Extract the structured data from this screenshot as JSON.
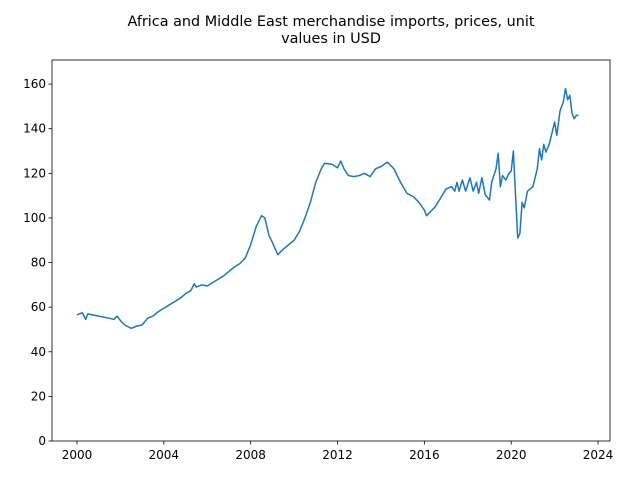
{
  "chart_data": {
    "type": "line",
    "title": [
      "Africa and Middle East merchandise imports, prices, unit",
      "values in USD"
    ],
    "x": [
      2000.0,
      2000.25,
      2000.4,
      2000.5,
      2001.0,
      2001.5,
      2001.7,
      2001.85,
      2002.0,
      2002.2,
      2002.5,
      2002.75,
      2003.0,
      2003.25,
      2003.5,
      2003.75,
      2004.0,
      2004.25,
      2004.5,
      2004.75,
      2005.0,
      2005.25,
      2005.4,
      2005.5,
      2005.75,
      2006.0,
      2006.25,
      2006.5,
      2006.75,
      2007.0,
      2007.25,
      2007.5,
      2007.75,
      2008.0,
      2008.25,
      2008.5,
      2008.65,
      2008.85,
      2009.0,
      2009.25,
      2009.5,
      2009.75,
      2010.0,
      2010.25,
      2010.5,
      2010.75,
      2011.0,
      2011.25,
      2011.4,
      2011.75,
      2012.0,
      2012.15,
      2012.3,
      2012.5,
      2012.75,
      2013.0,
      2013.25,
      2013.5,
      2013.75,
      2014.0,
      2014.3,
      2014.6,
      2014.9,
      2015.2,
      2015.5,
      2015.75,
      2016.0,
      2016.1,
      2016.5,
      2016.75,
      2017.0,
      2017.25,
      2017.4,
      2017.5,
      2017.6,
      2017.75,
      2017.9,
      2018.1,
      2018.25,
      2018.4,
      2018.5,
      2018.65,
      2018.8,
      2019.0,
      2019.1,
      2019.3,
      2019.4,
      2019.5,
      2019.6,
      2019.75,
      2019.9,
      2020.0,
      2020.1,
      2020.2,
      2020.3,
      2020.4,
      2020.5,
      2020.6,
      2020.75,
      2021.0,
      2021.2,
      2021.3,
      2021.4,
      2021.5,
      2021.6,
      2021.75,
      2022.0,
      2022.1,
      2022.25,
      2022.4,
      2022.5,
      2022.6,
      2022.7,
      2022.8,
      2022.9,
      2023.0,
      2023.1
    ],
    "series": [
      {
        "color": "#1f77b4",
        "values": [
          56.5,
          57.5,
          54.5,
          57,
          56,
          55,
          54.5,
          56,
          54,
          52,
          50.5,
          51.5,
          52,
          55,
          56,
          58,
          59.5,
          61,
          62.5,
          64,
          66,
          67.5,
          70.5,
          69,
          70,
          69.5,
          71,
          72.5,
          74,
          76,
          78,
          79.5,
          82,
          88,
          96,
          101,
          100,
          92,
          89,
          83.5,
          86,
          88,
          90,
          94,
          100,
          107,
          116,
          122,
          124.5,
          124,
          122.5,
          125.5,
          122,
          119,
          118.5,
          119,
          120,
          118.5,
          122,
          123,
          125,
          122,
          116,
          111,
          109.5,
          107,
          103.5,
          101,
          105,
          109,
          113,
          114,
          112,
          116,
          112,
          117,
          112,
          118,
          112,
          116,
          111,
          118,
          110.5,
          108,
          116,
          122,
          129,
          114,
          119,
          117,
          120,
          121,
          130,
          110,
          91,
          93,
          107,
          104.5,
          112,
          114,
          122,
          131,
          126,
          133,
          129.5,
          133,
          143,
          137,
          148,
          152,
          158,
          153,
          155,
          147,
          144.5,
          146,
          146
        ]
      }
    ],
    "xlim": [
      1998.85,
      2024.55
    ],
    "xticks": [
      2000,
      2004,
      2008,
      2012,
      2016,
      2020,
      2024
    ],
    "ylim": [
      0,
      170.8
    ],
    "yticks": [
      0,
      20,
      40,
      60,
      80,
      100,
      120,
      140,
      160
    ]
  }
}
